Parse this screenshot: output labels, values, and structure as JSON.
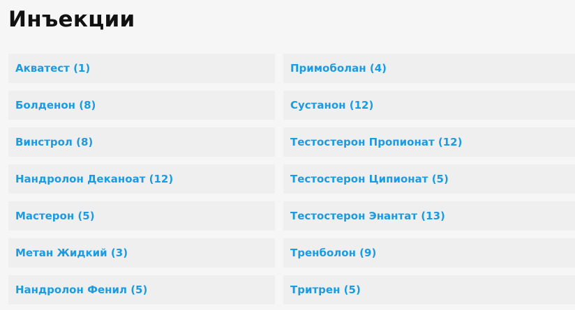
{
  "title": "Инъекции",
  "link_color": "#1a9be2",
  "categories": [
    {
      "label": "Акватест (1)"
    },
    {
      "label": "Примоболан (4)"
    },
    {
      "label": "Болденон (8)"
    },
    {
      "label": "Сустанон (12)"
    },
    {
      "label": "Винстрол (8)"
    },
    {
      "label": "Тестостерон Пропионат (12)"
    },
    {
      "label": "Нандролон Деканоат (12)"
    },
    {
      "label": "Тестостерон Ципионат (5)"
    },
    {
      "label": "Мастерон (5)"
    },
    {
      "label": "Тестостерон Энантат (13)"
    },
    {
      "label": "Метан Жидкий (3)"
    },
    {
      "label": "Тренболон (9)"
    },
    {
      "label": "Нандролон Фенил (5)"
    },
    {
      "label": "Тритрен (5)"
    }
  ]
}
